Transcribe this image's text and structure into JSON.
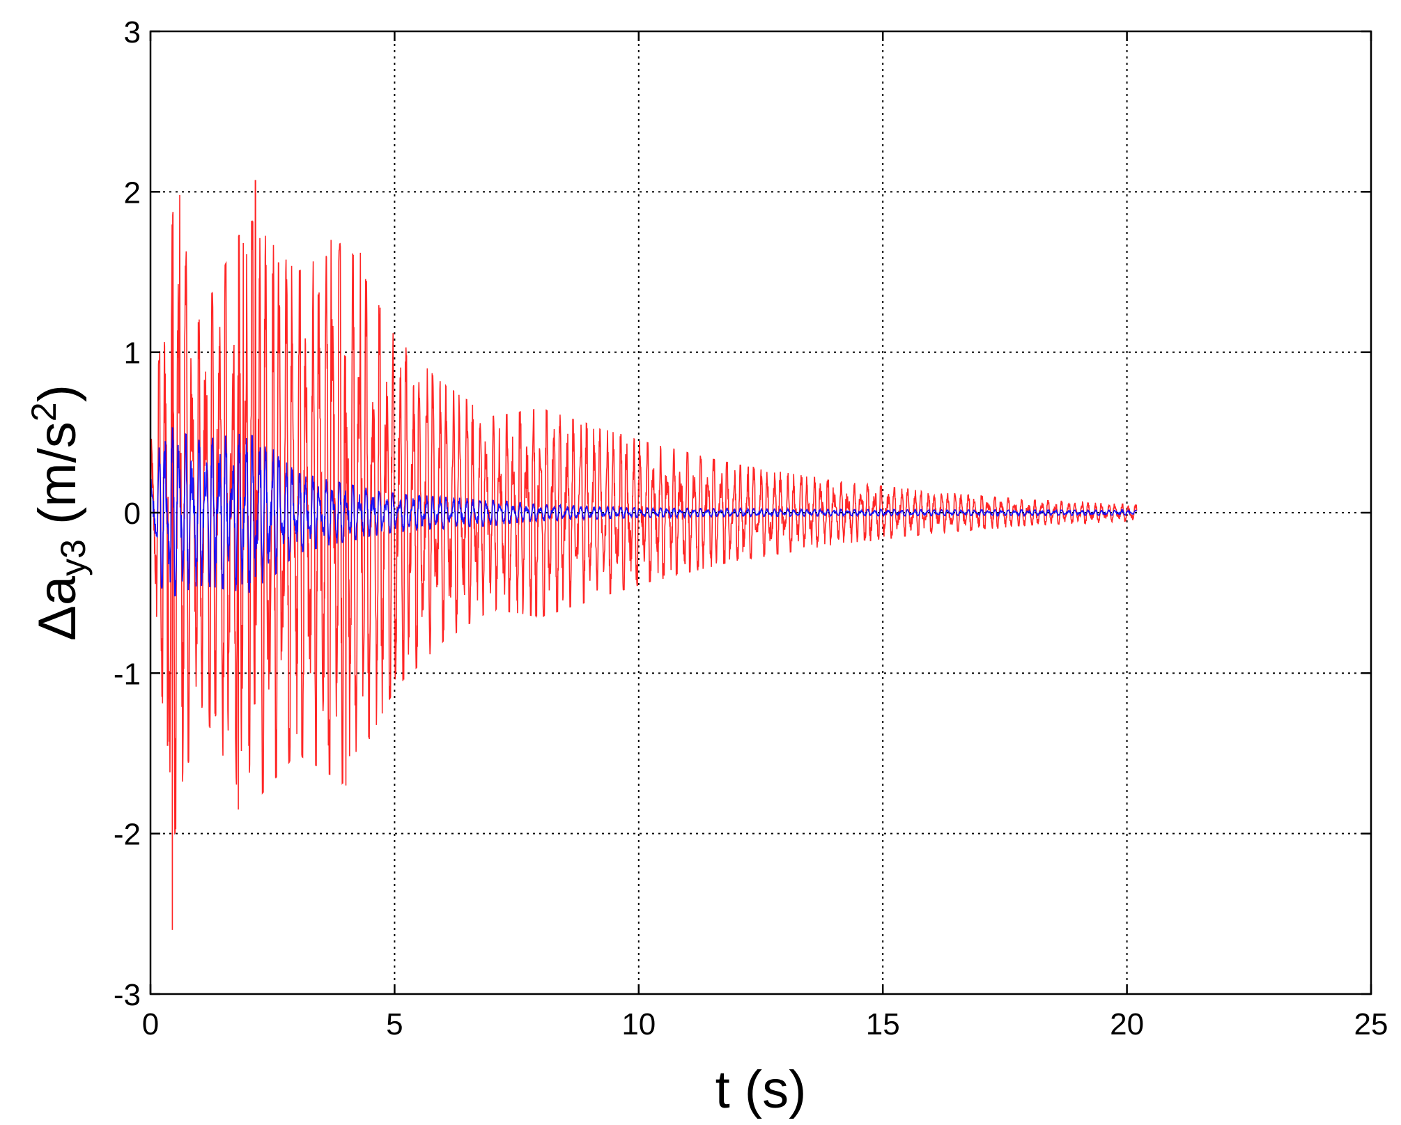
{
  "chart_data": {
    "type": "line",
    "title": "",
    "xlabel": "t (s)",
    "ylabel": {
      "prefix": "Δa",
      "subscript": "y3",
      "unit_open": " (m/s",
      "superscript": "2",
      "unit_close": ")"
    },
    "xlim": [
      0,
      25
    ],
    "ylim": [
      -3,
      3
    ],
    "xticks": [
      0,
      5,
      10,
      15,
      20,
      25
    ],
    "yticks": [
      3,
      2,
      1,
      0,
      -1,
      -2,
      -3
    ],
    "xtick_labels": [
      "0",
      "5",
      "10",
      "15",
      "20",
      "25"
    ],
    "ytick_labels": [
      "3",
      "2",
      "1",
      "0",
      "-1",
      "-2",
      "-3"
    ],
    "grid": true,
    "series": [
      {
        "color": "#ff0000",
        "envelope": {
          "t": [
            0,
            0.5,
            1,
            2,
            3,
            4,
            5,
            6,
            7,
            8,
            10,
            12,
            14,
            16,
            18,
            20.2
          ],
          "amp": [
            0.4,
            2.0,
            1.2,
            1.85,
            1.5,
            1.7,
            1.1,
            0.8,
            0.6,
            0.65,
            0.45,
            0.3,
            0.2,
            0.13,
            0.08,
            0.05
          ]
        },
        "peaks": [
          {
            "t": 0.35,
            "v": 1.95
          },
          {
            "t": 0.6,
            "v": 1.98
          },
          {
            "t": 2.15,
            "v": 2.07
          },
          {
            "t": 1.9,
            "v": 1.68
          },
          {
            "t": 3.7,
            "v": 1.7
          },
          {
            "t": 4.3,
            "v": 1.62
          },
          {
            "t": 0.45,
            "v": -2.6
          },
          {
            "t": 0.35,
            "v": -1.45
          },
          {
            "t": 1.8,
            "v": -1.85
          },
          {
            "t": 4.0,
            "v": -1.7
          },
          {
            "t": 3.0,
            "v": -1.38
          },
          {
            "t": 4.9,
            "v": -1.08
          }
        ]
      },
      {
        "color": "#0000ff",
        "envelope": {
          "t": [
            0,
            0.3,
            1,
            2,
            2.5,
            3,
            4,
            5,
            6,
            7,
            8,
            10,
            14,
            20.2
          ],
          "amp": [
            0.2,
            0.55,
            0.45,
            0.5,
            0.4,
            0.25,
            0.18,
            0.12,
            0.1,
            0.08,
            0.05,
            0.03,
            0.02,
            0.015
          ]
        }
      }
    ]
  }
}
